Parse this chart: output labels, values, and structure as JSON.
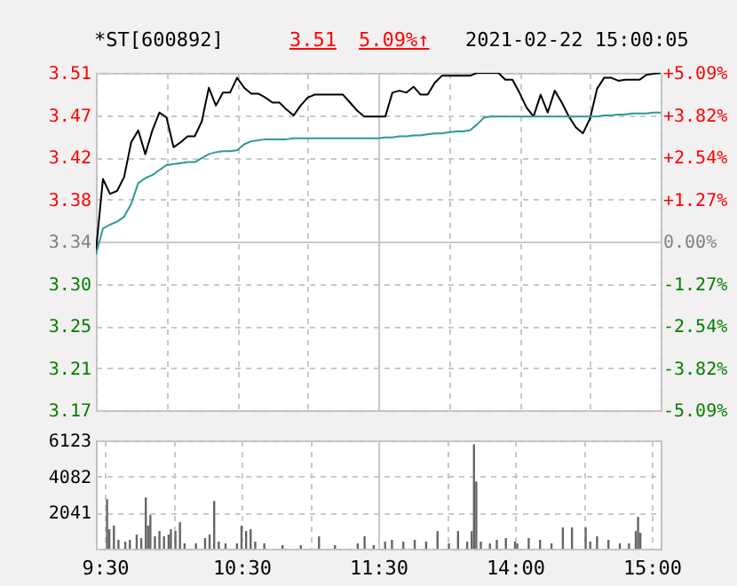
{
  "chart_data": [
    {
      "type": "line",
      "title": "*ST[600892]",
      "annotations": [
        "3.51",
        "5.09%↑",
        "2021-02-22 15:00:05"
      ],
      "categories": [
        null,
        null,
        null,
        null,
        null,
        null,
        null,
        null,
        null,
        null,
        null,
        null,
        null,
        null,
        null,
        null,
        null,
        null,
        null,
        null,
        null,
        null,
        null,
        null,
        null,
        null,
        null,
        null,
        null,
        null,
        null,
        null,
        null,
        null,
        null,
        null,
        null,
        null,
        null,
        null,
        null,
        null,
        null,
        null,
        null,
        null,
        null,
        null,
        null,
        null,
        null,
        null,
        null,
        null,
        null,
        null,
        null,
        null,
        null,
        null,
        null,
        null,
        null,
        null,
        null,
        null,
        null,
        null,
        null,
        null,
        null,
        null,
        null,
        null,
        null,
        null,
        null,
        null,
        null,
        null,
        null
      ],
      "series": [
        {
          "color": "#000000",
          "values": [
            3.33,
            3.403,
            3.388,
            3.391,
            3.405,
            3.44,
            3.452,
            3.428,
            3.452,
            3.47,
            3.465,
            3.435,
            3.44,
            3.446,
            3.446,
            3.461,
            3.495,
            3.477,
            3.49,
            3.49,
            3.505,
            3.495,
            3.489,
            3.489,
            3.485,
            3.48,
            3.48,
            3.473,
            3.467,
            3.477,
            3.485,
            3.488,
            3.488,
            3.488,
            3.488,
            3.488,
            3.48,
            3.472,
            3.466,
            3.466,
            3.466,
            3.466,
            3.49,
            3.492,
            3.49,
            3.496,
            3.488,
            3.488,
            3.5,
            3.507,
            3.507,
            3.507,
            3.507,
            3.507,
            3.51,
            3.51,
            3.51,
            3.51,
            3.503,
            3.503,
            3.49,
            3.475,
            3.466,
            3.488,
            3.47,
            3.492,
            3.48,
            3.466,
            3.455,
            3.449,
            3.464,
            3.494,
            3.505,
            3.505,
            3.502,
            3.503,
            3.503,
            3.503,
            3.508,
            3.509,
            3.51
          ]
        },
        {
          "color": "#2a9a96",
          "values": [
            3.327,
            3.353,
            3.357,
            3.36,
            3.365,
            3.378,
            3.399,
            3.404,
            3.407,
            3.412,
            3.417,
            3.418,
            3.419,
            3.42,
            3.42,
            3.424,
            3.428,
            3.43,
            3.431,
            3.431,
            3.432,
            3.438,
            3.441,
            3.442,
            3.443,
            3.443,
            3.443,
            3.443,
            3.444,
            3.444,
            3.444,
            3.444,
            3.444,
            3.444,
            3.444,
            3.444,
            3.444,
            3.444,
            3.444,
            3.444,
            3.444,
            3.445,
            3.445,
            3.446,
            3.446,
            3.447,
            3.447,
            3.448,
            3.449,
            3.449,
            3.45,
            3.451,
            3.451,
            3.452,
            3.458,
            3.465,
            3.466,
            3.466,
            3.466,
            3.466,
            3.466,
            3.466,
            3.466,
            3.466,
            3.466,
            3.466,
            3.466,
            3.466,
            3.466,
            3.466,
            3.466,
            3.466,
            3.467,
            3.467,
            3.468,
            3.468,
            3.469,
            3.469,
            3.469,
            3.47,
            3.47
          ]
        }
      ],
      "ylim": [
        3.17,
        3.51
      ],
      "yticks": [
        {
          "value": 3.17,
          "label": "3.17"
        },
        {
          "value": 3.2125,
          "label": "3.21"
        },
        {
          "value": 3.255,
          "label": "3.25"
        },
        {
          "value": 3.2975,
          "label": "3.30"
        },
        {
          "value": 3.34,
          "label": "3.34"
        },
        {
          "value": 3.3825,
          "label": "3.38"
        },
        {
          "value": 3.425,
          "label": "3.42"
        },
        {
          "value": 3.4675,
          "label": "3.47"
        },
        {
          "value": 3.51,
          "label": "3.51"
        }
      ],
      "y2lim": [
        -5.09,
        5.09
      ],
      "y2ticks": [
        {
          "value": -5.09,
          "label": "-5.09%"
        },
        {
          "value": -3.8175,
          "label": "-3.82%"
        },
        {
          "value": -2.545,
          "label": "-2.54%"
        },
        {
          "value": -1.2725,
          "label": "-1.27%"
        },
        {
          "value": 0,
          "label": "0.00%"
        },
        {
          "value": 1.2725,
          "label": "+1.27%"
        },
        {
          "value": 2.545,
          "label": "+2.54%"
        },
        {
          "value": 3.8175,
          "label": "+3.82%"
        },
        {
          "value": 5.09,
          "label": "+5.09%"
        }
      ],
      "grid": true
    },
    {
      "type": "bar",
      "color": "#666666",
      "categories": [
        "9:30",
        null,
        null,
        null,
        null,
        null,
        null,
        null,
        null,
        null,
        null,
        null,
        null,
        null,
        null,
        null,
        null,
        null,
        null,
        null,
        null,
        null,
        null,
        null,
        null,
        null,
        null,
        null,
        null,
        null,
        null,
        null,
        null,
        null,
        null,
        null,
        null,
        null,
        null,
        null,
        null,
        null,
        null,
        null,
        null,
        null,
        null,
        null,
        null,
        null,
        null,
        null,
        null,
        null,
        null,
        null,
        null,
        null,
        null,
        null,
        "10:30",
        null,
        null,
        null,
        null,
        null,
        null,
        null,
        null,
        null,
        null,
        null,
        null,
        null,
        null,
        null,
        null,
        null,
        null,
        null,
        null,
        null,
        null,
        null,
        null,
        null,
        null,
        null,
        null,
        null,
        null,
        null,
        null,
        null,
        null,
        null,
        null,
        null,
        null,
        null,
        null,
        null,
        null,
        null,
        null,
        null,
        null,
        null,
        null,
        null,
        null,
        null,
        null,
        null,
        null,
        null,
        null,
        null,
        null,
        null,
        "11:30",
        null,
        null,
        null,
        null,
        null,
        null,
        null,
        null,
        null,
        null,
        null,
        null,
        null,
        null,
        null,
        null,
        null,
        null,
        null,
        null,
        null,
        null,
        null,
        null,
        null,
        null,
        null,
        null,
        null,
        null,
        null,
        null,
        null,
        null,
        null,
        null,
        null,
        null,
        null,
        null,
        null,
        null,
        null,
        null,
        null,
        null,
        null,
        null,
        null,
        null,
        null,
        null,
        null,
        null,
        null,
        null,
        null,
        null,
        null,
        "14:00",
        null,
        null,
        null,
        null,
        null,
        null,
        null,
        null,
        null,
        null,
        null,
        null,
        null,
        null,
        null,
        null,
        null,
        null,
        null,
        null,
        null,
        null,
        null,
        null,
        null,
        null,
        null,
        null,
        null,
        null,
        null,
        null,
        null,
        null,
        null,
        null,
        null,
        null,
        null,
        null,
        null,
        null,
        null,
        null,
        null,
        null,
        null,
        null,
        null,
        null,
        null,
        null,
        null,
        null,
        null,
        null,
        null,
        null,
        null,
        "15:00"
      ],
      "values": [
        null,
        2800,
        1100,
        null,
        1300,
        null,
        500,
        null,
        null,
        400,
        null,
        500,
        null,
        null,
        800,
        null,
        600,
        null,
        2900,
        1300,
        1900,
        null,
        700,
        null,
        1000,
        null,
        700,
        null,
        800,
        1100,
        null,
        1000,
        null,
        1500,
        null,
        300,
        null,
        null,
        null,
        null,
        300,
        null,
        null,
        null,
        600,
        null,
        800,
        null,
        2700,
        null,
        400,
        null,
        null,
        300,
        null,
        null,
        null,
        null,
        300,
        null,
        1300,
        null,
        1000,
        null,
        1100,
        null,
        400,
        null,
        null,
        null,
        300,
        null,
        null,
        null,
        null,
        null,
        null,
        null,
        200,
        null,
        null,
        null,
        null,
        null,
        null,
        null,
        200,
        null,
        null,
        null,
        null,
        null,
        null,
        null,
        700,
        null,
        null,
        null,
        null,
        null,
        null,
        200,
        null,
        null,
        null,
        null,
        null,
        null,
        null,
        null,
        null,
        300,
        null,
        null,
        700,
        null,
        null,
        null,
        200,
        null,
        null,
        null,
        null,
        400,
        null,
        null,
        500,
        null,
        null,
        null,
        null,
        400,
        null,
        null,
        null,
        null,
        500,
        null,
        null,
        null,
        null,
        400,
        null,
        null,
        null,
        null,
        1000,
        null,
        null,
        null,
        null,
        300,
        null,
        null,
        null,
        1000,
        null,
        null,
        null,
        400,
        null,
        1000,
        5900,
        3800,
        null,
        400,
        null,
        null,
        null,
        300,
        null,
        null,
        500,
        null,
        null,
        null,
        600,
        null,
        null,
        null,
        400,
        300,
        null,
        null,
        null,
        null,
        600,
        null,
        null,
        null,
        null,
        500,
        null,
        null,
        null,
        null,
        300,
        null,
        null,
        null,
        null,
        1200,
        null,
        null,
        null,
        1200,
        null,
        null,
        null,
        null,
        null,
        1200,
        null,
        400,
        null,
        null,
        700,
        null,
        null,
        null,
        null,
        500,
        null,
        null,
        null,
        null,
        300,
        null,
        null,
        null,
        300,
        null,
        null,
        1000,
        1800,
        900,
        null,
        null,
        null,
        null,
        null
      ],
      "ylim": [
        0,
        6123
      ],
      "yticks": [
        {
          "value": 0,
          "label": null
        },
        2041,
        4082,
        6123
      ],
      "grid": true
    }
  ]
}
